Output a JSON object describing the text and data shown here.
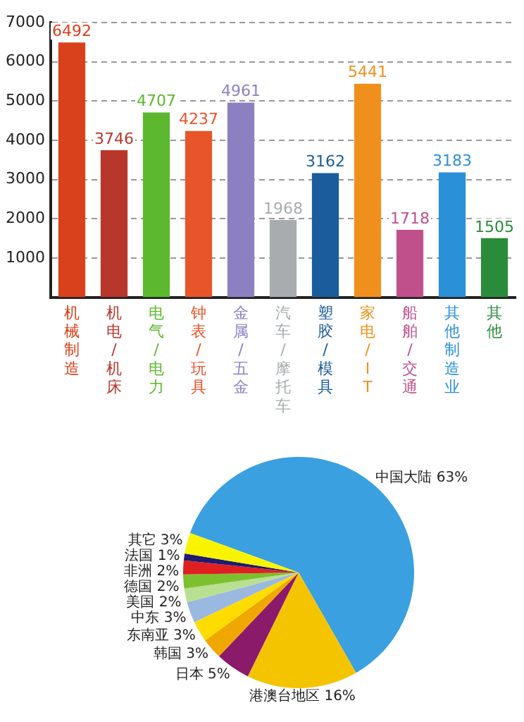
{
  "chart_data": [
    {
      "type": "bar",
      "categories": [
        "机械制造",
        "机电/机床",
        "电气/电力",
        "钟表/玩具",
        "金属/五金",
        "汽车/摩托车",
        "塑胶/模具",
        "家电/IT",
        "船舶/交通",
        "其他制造业",
        "其他"
      ],
      "values": [
        6492,
        3746,
        4707,
        4237,
        4961,
        1968,
        3162,
        5441,
        1718,
        3183,
        1505
      ],
      "colors": [
        "#d9401c",
        "#b8372b",
        "#5cb82e",
        "#e8552a",
        "#8c80c0",
        "#a8acae",
        "#1a5c9c",
        "#f0901c",
        "#c0508c",
        "#2a90d8",
        "#2a8c3a"
      ],
      "ylim": [
        0,
        7000
      ],
      "yticks": [
        {
          "value": 1000,
          "label": "1000"
        },
        {
          "value": 2000,
          "label": "2000"
        },
        {
          "value": 3000,
          "label": "3000"
        },
        {
          "value": 4000,
          "label": "4000"
        },
        {
          "value": 5000,
          "label": "5000"
        },
        {
          "value": 6000,
          "label": "6000"
        },
        {
          "value": 7000,
          "label": "7000"
        }
      ],
      "grid": "y",
      "line_style": "dashed",
      "data_labels": true,
      "legend": false
    },
    {
      "type": "pie",
      "categories": [
        "中国大陆",
        "港澳台地区",
        "日本",
        "韩国",
        "东南亚",
        "中东",
        "美国",
        "德国",
        "非洲",
        "法国",
        "其它"
      ],
      "values": [
        63,
        16,
        5,
        3,
        3,
        3,
        2,
        2,
        2,
        1,
        3
      ],
      "value_labels": [
        "63%",
        "16%",
        "5%",
        "3%",
        "3%",
        "3%",
        "2%",
        "2%",
        "2%",
        "1%",
        "3%"
      ],
      "colors": [
        "#3aa0e0",
        "#f5c400",
        "#8b1a6b",
        "#f0a800",
        "#ffdc00",
        "#9ab8e0",
        "#b8e090",
        "#7cc030",
        "#e02020",
        "#201a70",
        "#f8f400"
      ],
      "legend": false
    }
  ]
}
